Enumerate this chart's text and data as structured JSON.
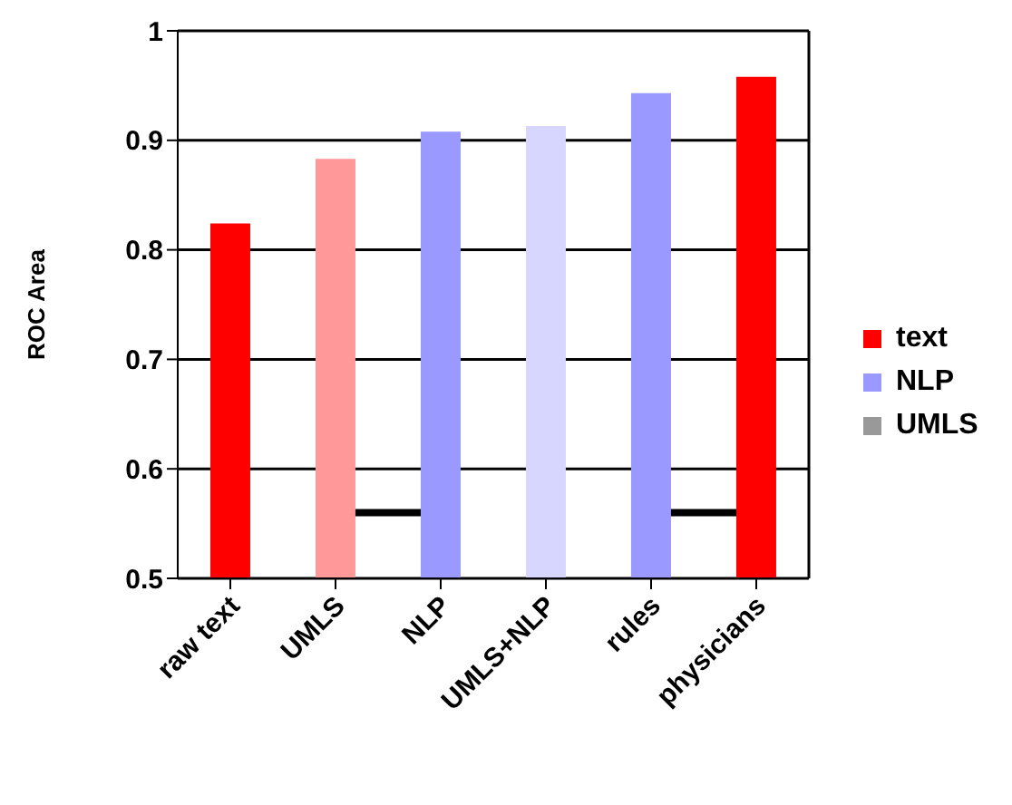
{
  "chart_data": {
    "type": "bar",
    "ylabel": "ROC Area",
    "categories": [
      "raw text",
      "UMLS",
      "NLP",
      "UMLS+NLP",
      "rules",
      "physicians"
    ],
    "series": [
      {
        "name": "text",
        "color": "#ff0000",
        "colors": [
          "#ff0000",
          "#ff9999",
          null,
          null,
          null,
          "#ff0000"
        ],
        "values": [
          0.824,
          0.883,
          null,
          null,
          null,
          0.958
        ]
      },
      {
        "name": "NLP",
        "color": "#9999ff",
        "colors": [
          null,
          null,
          "#9999ff",
          "#d6d6ff",
          "#9999ff",
          null
        ],
        "values": [
          null,
          null,
          0.908,
          0.913,
          0.943,
          null
        ]
      },
      {
        "name": "UMLS",
        "color": "#999999",
        "values": [
          null,
          null,
          null,
          null,
          null,
          null
        ]
      }
    ],
    "stacked": true,
    "ylim": [
      0.5,
      1
    ],
    "yticks": [
      0.5,
      0.6,
      0.7,
      0.8,
      0.9,
      1
    ],
    "grid": "y",
    "legend": "right"
  }
}
